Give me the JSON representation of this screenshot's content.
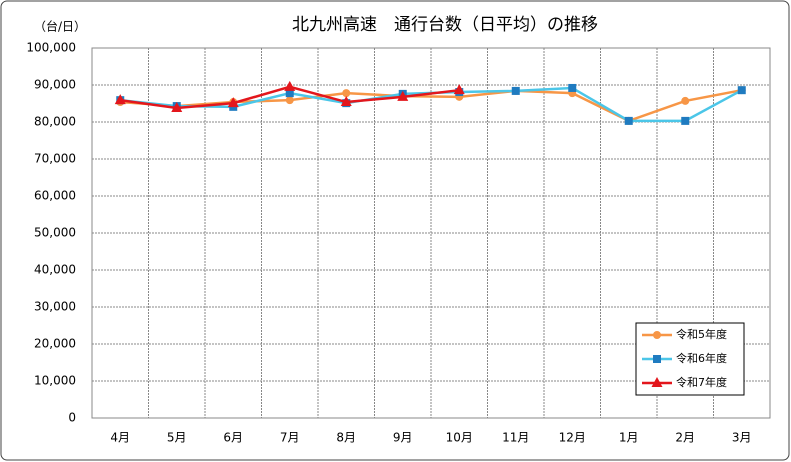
{
  "chart_data": {
    "type": "line",
    "title": "北九州高速　通行台数（日平均）の推移",
    "y_label": "（台/日）",
    "categories": [
      "4月",
      "5月",
      "6月",
      "7月",
      "8月",
      "9月",
      "10月",
      "11月",
      "12月",
      "1月",
      "2月",
      "3月"
    ],
    "ylim": [
      0,
      100000
    ],
    "yticks": [
      0,
      {
        "value": 10000,
        "label": "10,000"
      },
      {
        "value": 20000,
        "label": "20,000"
      },
      {
        "value": 30000,
        "label": "30,000"
      },
      {
        "value": 40000,
        "label": "40,000"
      },
      {
        "value": 50000,
        "label": "50,000"
      },
      {
        "value": 60000,
        "label": "60,000"
      },
      {
        "value": 70000,
        "label": "70,000"
      },
      {
        "value": 80000,
        "label": "80,000"
      },
      {
        "value": 90000,
        "label": "90,000"
      },
      {
        "value": 100000,
        "label": "100,000"
      }
    ],
    "grid": true,
    "legend": "lower right",
    "series": [
      {
        "name": "令和5年度",
        "color": "#f79646",
        "marker": "circle",
        "values": [
          85400,
          84300,
          85400,
          85900,
          87800,
          87000,
          86800,
          88400,
          87800,
          80300,
          85700,
          88600
        ]
      },
      {
        "name": "令和6年度",
        "color": "#4bc6e8",
        "marker": "square",
        "values": [
          85900,
          84300,
          84100,
          87800,
          85100,
          87600,
          88100,
          88400,
          89200,
          80300,
          80300,
          88600
        ]
      },
      {
        "name": "令和7年度",
        "color": "#e3161c",
        "marker": "triangle",
        "values": [
          85900,
          83800,
          85100,
          89500,
          85400,
          86800,
          88600,
          null,
          null,
          null,
          null,
          null
        ]
      }
    ]
  }
}
